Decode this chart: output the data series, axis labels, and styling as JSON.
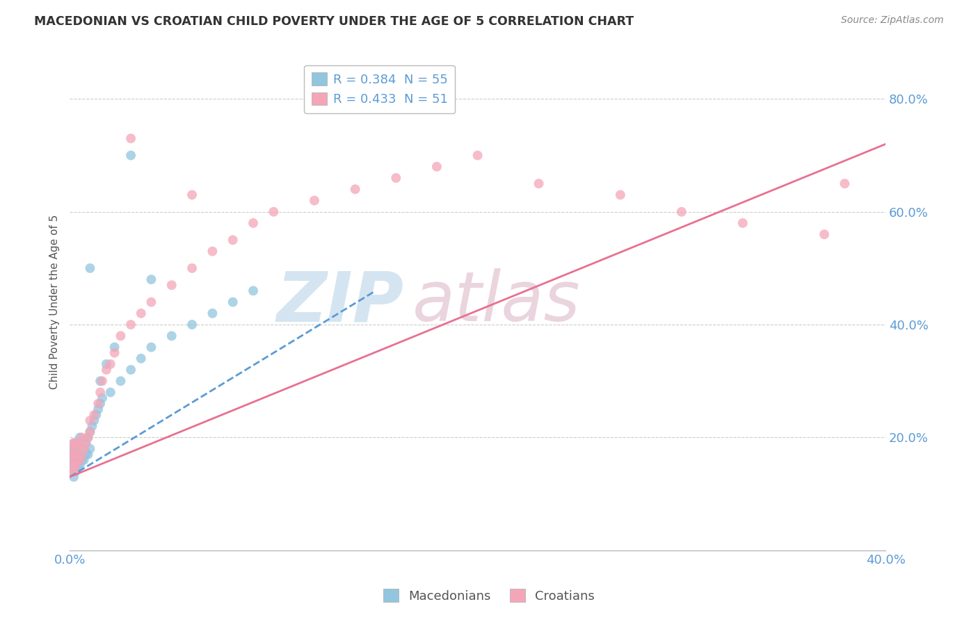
{
  "title": "MACEDONIAN VS CROATIAN CHILD POVERTY UNDER THE AGE OF 5 CORRELATION CHART",
  "source": "Source: ZipAtlas.com",
  "ylabel": "Child Poverty Under the Age of 5",
  "xlim": [
    0.0,
    0.4
  ],
  "ylim": [
    0.0,
    0.88
  ],
  "ytick_positions": [
    0.2,
    0.4,
    0.6,
    0.8
  ],
  "ytick_labels": [
    "20.0%",
    "40.0%",
    "60.0%",
    "80.0%"
  ],
  "xtick_positions": [
    0.0,
    0.4
  ],
  "xtick_labels": [
    "0.0%",
    "40.0%"
  ],
  "macedonian_color": "#92C5DE",
  "croatian_color": "#F4A6B8",
  "macedonian_line_color": "#5B9BD5",
  "croatian_line_color": "#E87090",
  "background_color": "#FFFFFF",
  "grid_color": "#CCCCCC",
  "tick_color": "#5B9BD5",
  "mac_line_x0": 0.0,
  "mac_line_y0": 0.13,
  "mac_line_x1": 0.15,
  "mac_line_y1": 0.46,
  "cro_line_x0": 0.0,
  "cro_line_y0": 0.13,
  "cro_line_x1": 0.4,
  "cro_line_y1": 0.72,
  "mac_scatter_x": [
    0.001,
    0.001,
    0.001,
    0.001,
    0.001,
    0.002,
    0.002,
    0.002,
    0.002,
    0.002,
    0.002,
    0.003,
    0.003,
    0.003,
    0.003,
    0.003,
    0.004,
    0.004,
    0.004,
    0.004,
    0.005,
    0.005,
    0.005,
    0.006,
    0.006,
    0.007,
    0.007,
    0.008,
    0.008,
    0.009,
    0.009,
    0.01,
    0.01,
    0.011,
    0.012,
    0.013,
    0.014,
    0.015,
    0.016,
    0.02,
    0.025,
    0.03,
    0.035,
    0.04,
    0.05,
    0.06,
    0.07,
    0.08,
    0.09,
    0.01,
    0.015,
    0.018,
    0.022,
    0.03,
    0.04
  ],
  "mac_scatter_y": [
    0.14,
    0.15,
    0.16,
    0.17,
    0.18,
    0.13,
    0.15,
    0.16,
    0.17,
    0.18,
    0.19,
    0.14,
    0.15,
    0.16,
    0.17,
    0.18,
    0.15,
    0.16,
    0.17,
    0.19,
    0.15,
    0.16,
    0.2,
    0.16,
    0.17,
    0.16,
    0.18,
    0.17,
    0.19,
    0.17,
    0.2,
    0.18,
    0.21,
    0.22,
    0.23,
    0.24,
    0.25,
    0.26,
    0.27,
    0.28,
    0.3,
    0.32,
    0.34,
    0.36,
    0.38,
    0.4,
    0.42,
    0.44,
    0.46,
    0.5,
    0.3,
    0.33,
    0.36,
    0.7,
    0.48
  ],
  "cro_scatter_x": [
    0.001,
    0.001,
    0.001,
    0.002,
    0.002,
    0.002,
    0.002,
    0.003,
    0.003,
    0.003,
    0.004,
    0.004,
    0.005,
    0.005,
    0.006,
    0.006,
    0.007,
    0.008,
    0.009,
    0.01,
    0.01,
    0.012,
    0.014,
    0.015,
    0.016,
    0.018,
    0.02,
    0.022,
    0.025,
    0.03,
    0.035,
    0.04,
    0.05,
    0.06,
    0.07,
    0.08,
    0.09,
    0.1,
    0.12,
    0.14,
    0.16,
    0.18,
    0.2,
    0.23,
    0.27,
    0.3,
    0.33,
    0.37,
    0.38,
    0.03,
    0.06
  ],
  "cro_scatter_y": [
    0.14,
    0.16,
    0.18,
    0.14,
    0.15,
    0.17,
    0.19,
    0.15,
    0.17,
    0.19,
    0.16,
    0.18,
    0.16,
    0.19,
    0.17,
    0.2,
    0.18,
    0.19,
    0.2,
    0.21,
    0.23,
    0.24,
    0.26,
    0.28,
    0.3,
    0.32,
    0.33,
    0.35,
    0.38,
    0.4,
    0.42,
    0.44,
    0.47,
    0.5,
    0.53,
    0.55,
    0.58,
    0.6,
    0.62,
    0.64,
    0.66,
    0.68,
    0.7,
    0.65,
    0.63,
    0.6,
    0.58,
    0.56,
    0.65,
    0.73,
    0.63
  ]
}
